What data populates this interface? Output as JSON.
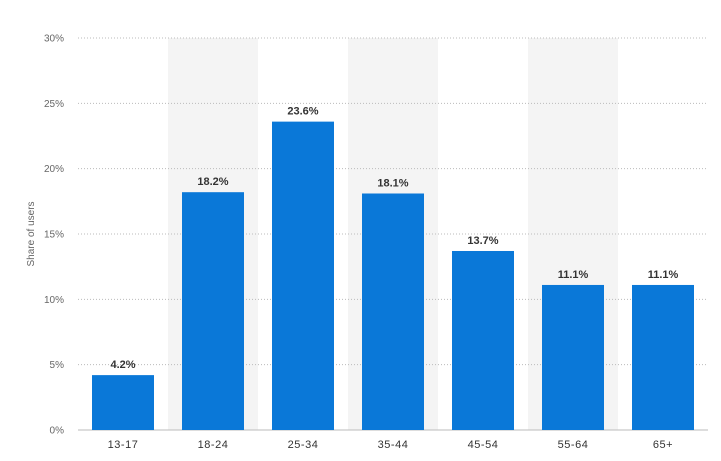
{
  "chart_data": {
    "type": "bar",
    "ylabel": "Share of users",
    "xlabel": "",
    "title": "",
    "categories": [
      "13-17",
      "18-24",
      "25-34",
      "35-44",
      "45-54",
      "55-64",
      "65+"
    ],
    "values": [
      4.2,
      18.2,
      23.6,
      18.1,
      13.7,
      11.1,
      11.1
    ],
    "value_labels": [
      "4.2%",
      "18.2%",
      "23.6%",
      "18.1%",
      "13.7%",
      "11.1%",
      "11.1%"
    ],
    "ylim": [
      0,
      30
    ],
    "yticks": [
      0,
      5,
      10,
      15,
      20,
      25,
      30
    ],
    "ytick_labels": [
      "0%",
      "5%",
      "10%",
      "15%",
      "20%",
      "25%",
      "30%"
    ],
    "grid": true,
    "colors": {
      "bar": "#0a78d8",
      "band": "#f4f4f4",
      "grid": "#bbbbbb"
    }
  }
}
